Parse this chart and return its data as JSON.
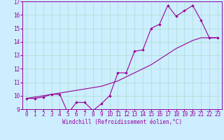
{
  "xlabel": "Windchill (Refroidissement éolien,°C)",
  "ylabel": "",
  "background_color": "#cceeff",
  "line_color": "#990099",
  "grid_color": "#aaddcc",
  "xlim": [
    -0.5,
    23.5
  ],
  "ylim": [
    9,
    17
  ],
  "xticks": [
    0,
    1,
    2,
    3,
    4,
    5,
    6,
    7,
    8,
    9,
    10,
    11,
    12,
    13,
    14,
    15,
    16,
    17,
    18,
    19,
    20,
    21,
    22,
    23
  ],
  "yticks": [
    9,
    10,
    11,
    12,
    13,
    14,
    15,
    16,
    17
  ],
  "zigzag_x": [
    0,
    1,
    2,
    3,
    4,
    5,
    6,
    7,
    8,
    9,
    10,
    11,
    12,
    13,
    14,
    15,
    16,
    17,
    18,
    19,
    20,
    21,
    22,
    23
  ],
  "zigzag_y": [
    9.8,
    9.8,
    9.9,
    10.1,
    10.1,
    8.7,
    9.5,
    9.5,
    8.9,
    9.4,
    10.0,
    11.7,
    11.7,
    13.3,
    13.4,
    15.0,
    15.3,
    16.7,
    15.9,
    16.3,
    16.7,
    15.6,
    14.3,
    14.3
  ],
  "trend_x": [
    0,
    1,
    2,
    3,
    4,
    5,
    6,
    7,
    8,
    9,
    10,
    11,
    12,
    13,
    14,
    15,
    16,
    17,
    18,
    19,
    20,
    21,
    22,
    23
  ],
  "trend_y": [
    9.8,
    9.9,
    10.0,
    10.1,
    10.2,
    10.3,
    10.4,
    10.5,
    10.6,
    10.7,
    10.9,
    11.1,
    11.4,
    11.7,
    12.0,
    12.3,
    12.7,
    13.1,
    13.5,
    13.8,
    14.1,
    14.3,
    14.3,
    14.3
  ],
  "xlabel_fontsize": 5.5,
  "tick_fontsize": 5.5,
  "line_width": 0.8,
  "marker_size": 2.2
}
